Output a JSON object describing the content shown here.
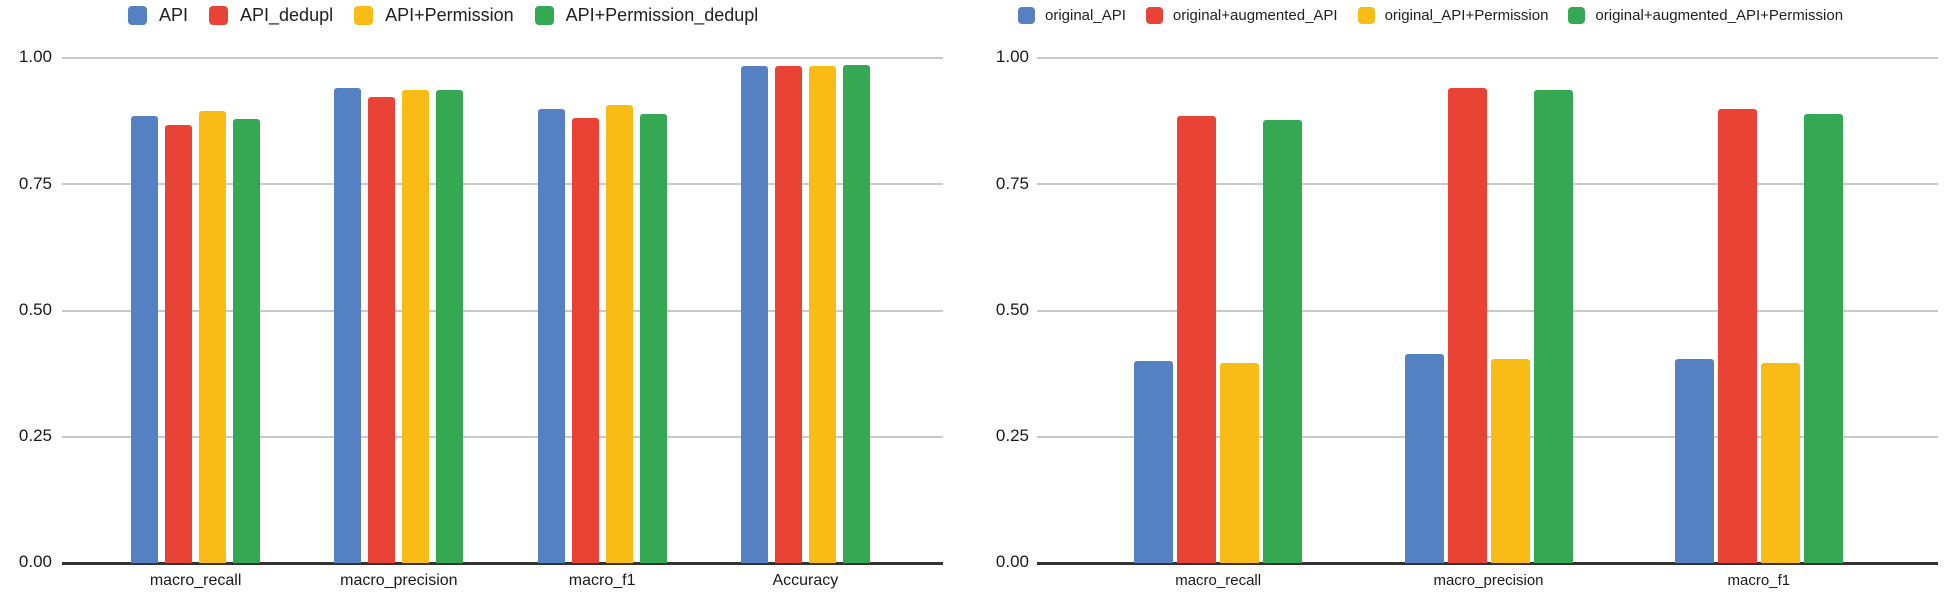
{
  "page": {
    "background": "#ffffff"
  },
  "palette": {
    "blue": "#5580C2",
    "red": "#E94335",
    "yellow": "#F9BB16",
    "green": "#34A853",
    "grid": "#c9c9c9",
    "axis": "#333333",
    "text": "#1a1a1a"
  },
  "chart_data": [
    {
      "type": "bar",
      "title": "",
      "categories": [
        "macro_recall",
        "macro_precision",
        "macro_f1",
        "Accuracy"
      ],
      "series": [
        {
          "name": "API",
          "color_key": "blue",
          "values": [
            0.885,
            0.941,
            0.899,
            0.985
          ]
        },
        {
          "name": "API_dedupl",
          "color_key": "red",
          "values": [
            0.867,
            0.922,
            0.881,
            0.984
          ]
        },
        {
          "name": "API+Permission",
          "color_key": "yellow",
          "values": [
            0.895,
            0.937,
            0.906,
            0.985
          ]
        },
        {
          "name": "API+Permission_dedupl",
          "color_key": "green",
          "values": [
            0.879,
            0.936,
            0.89,
            0.986
          ]
        }
      ],
      "xlabel": "",
      "ylabel": "",
      "ylim": [
        0,
        1
      ],
      "yticks": [
        "1.00",
        "0.75",
        "0.50",
        "0.25",
        "0.00"
      ],
      "grid": true,
      "legend_position": "top"
    },
    {
      "type": "bar",
      "title": "",
      "categories": [
        "macro_recall",
        "macro_precision",
        "macro_f1"
      ],
      "series": [
        {
          "name": "original_API",
          "color_key": "blue",
          "values": [
            0.4,
            0.414,
            0.404
          ]
        },
        {
          "name": "original+augmented_API",
          "color_key": "red",
          "values": [
            0.885,
            0.941,
            0.899
          ]
        },
        {
          "name": "original_API+Permission",
          "color_key": "yellow",
          "values": [
            0.396,
            0.404,
            0.397
          ]
        },
        {
          "name": "original+augmented_API+Permission",
          "color_key": "green",
          "values": [
            0.878,
            0.937,
            0.889
          ]
        }
      ],
      "xlabel": "",
      "ylabel": "",
      "ylim": [
        0,
        1
      ],
      "yticks": [
        "1.00",
        "0.75",
        "0.50",
        "0.25",
        "0.00"
      ],
      "grid": true,
      "legend_position": "top"
    }
  ]
}
